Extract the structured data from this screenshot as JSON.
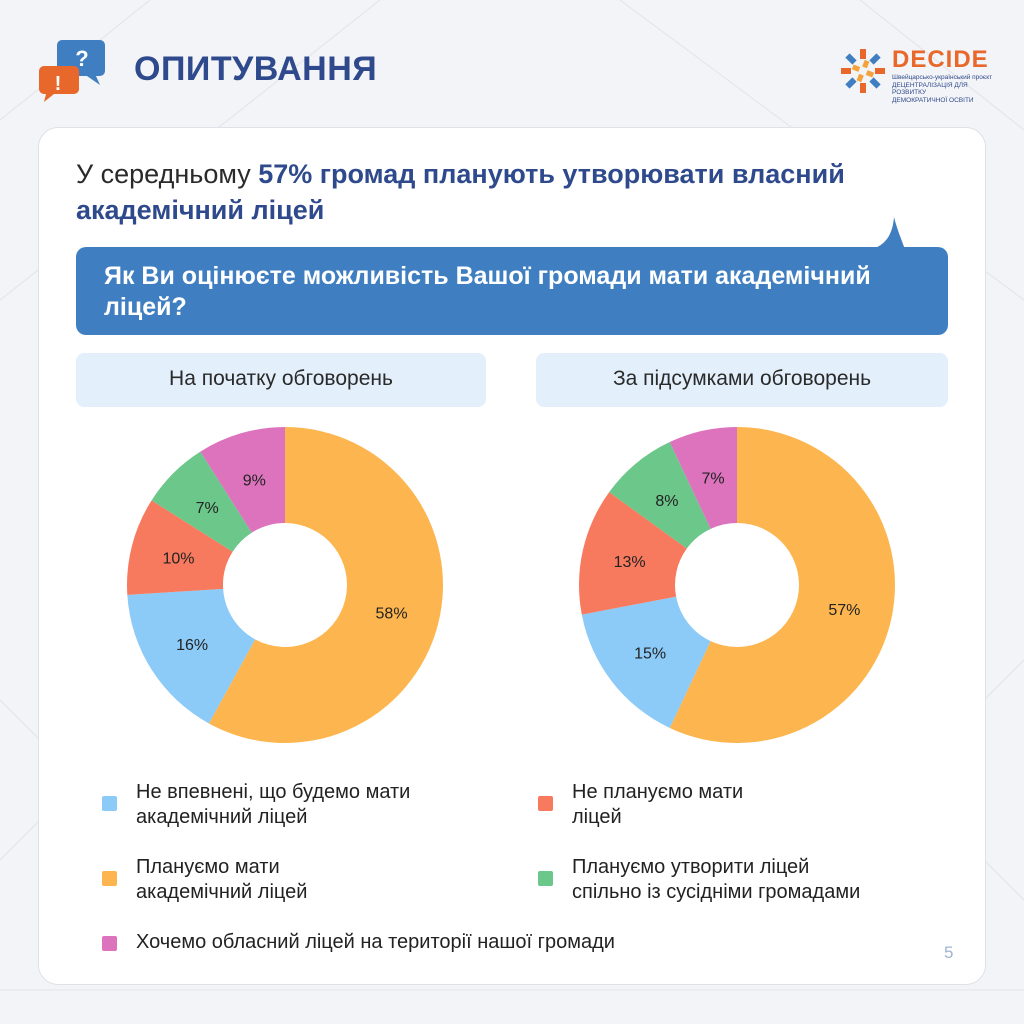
{
  "header": {
    "title": "ОПИТУВАННЯ",
    "logo": {
      "name": "DECIDE",
      "subtitle_line1": "Швейцарсько-український проєкт",
      "subtitle_line2": "ДЕЦЕНТРАЛІЗАЦІЯ ДЛЯ РОЗВИТКУ",
      "subtitle_line3": "ДЕМОКРАТИЧНОЇ ОСВІТИ"
    }
  },
  "headline": {
    "prefix": "У середньому ",
    "highlight": "57% громад планують утворювати власний академічний ліцей"
  },
  "question": "Як Ви оцінюєте можливість Вашої громади мати академічний ліцей?",
  "page_number": "5",
  "colors": {
    "plan": "#fdb64f",
    "unsure": "#8ccaf7",
    "no": "#f87a5e",
    "joint": "#6cc78a",
    "regional": "#dd72bd",
    "title_blue": "#2f4a8c",
    "question_bg": "#3f7fc1"
  },
  "chart_data": [
    {
      "type": "pie",
      "title": "На початку обговорень",
      "slices": [
        {
          "key": "plan",
          "label": "58%",
          "value": 58
        },
        {
          "key": "unsure",
          "label": "16%",
          "value": 16
        },
        {
          "key": "no",
          "label": "10%",
          "value": 10
        },
        {
          "key": "joint",
          "label": "7%",
          "value": 7
        },
        {
          "key": "regional",
          "label": "9%",
          "value": 9
        }
      ]
    },
    {
      "type": "pie",
      "title": "За підсумками обговорень",
      "slices": [
        {
          "key": "plan",
          "label": "57%",
          "value": 57
        },
        {
          "key": "unsure",
          "label": "15%",
          "value": 15
        },
        {
          "key": "no",
          "label": "13%",
          "value": 13
        },
        {
          "key": "joint",
          "label": "8%",
          "value": 8
        },
        {
          "key": "regional",
          "label": "7%",
          "value": 7
        }
      ]
    }
  ],
  "legend": {
    "unsure": {
      "line1": "Не впевнені, що будемо мати",
      "line2": "академічний ліцей"
    },
    "no": {
      "line1": "Не плануємо мати",
      "line2": "ліцей"
    },
    "plan": {
      "line1": "Плануємо мати",
      "line2": "академічний ліцей"
    },
    "joint": {
      "line1": "Плануємо утворити ліцей",
      "line2": "спільно із сусідніми громадами"
    },
    "regional": {
      "line1": "Хочемо обласний ліцей на території нашої громади"
    }
  }
}
